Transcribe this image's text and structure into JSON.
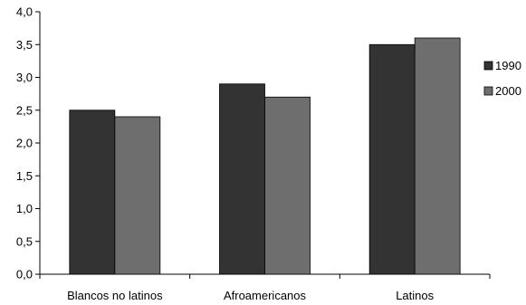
{
  "chart_data": {
    "type": "bar",
    "categories": [
      "Blancos no latinos",
      "Afroamericanos",
      "Latinos"
    ],
    "series": [
      {
        "name": "1990",
        "values": [
          2.5,
          2.9,
          3.5
        ],
        "color": "#333333"
      },
      {
        "name": "2000",
        "values": [
          2.4,
          2.7,
          3.6
        ],
        "color": "#6e6e6e"
      }
    ],
    "ylim": [
      0,
      4
    ],
    "yticks": [
      "0,0",
      "0,5",
      "1,0",
      "1,5",
      "2,0",
      "2,5",
      "3,0",
      "3,5",
      "4,0"
    ],
    "grid": false,
    "legend": "right"
  }
}
